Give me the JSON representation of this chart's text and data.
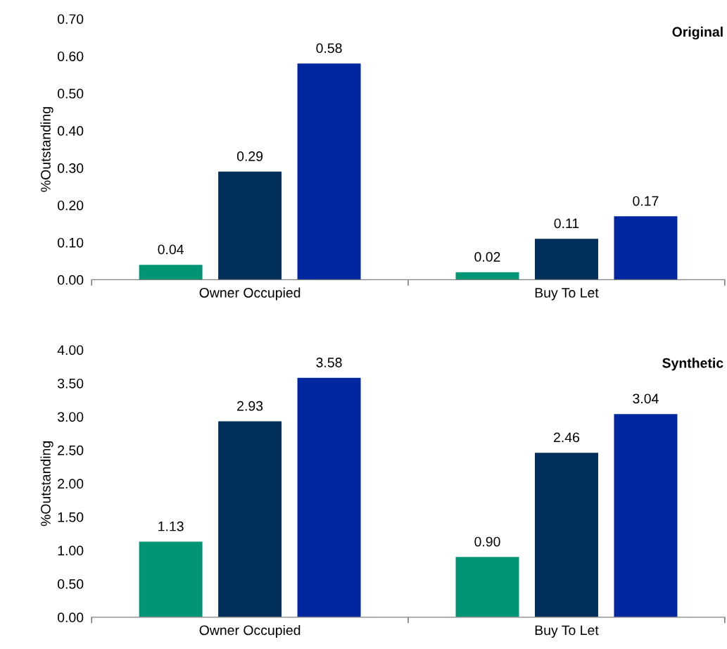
{
  "chart_data": [
    {
      "type": "bar",
      "title": "Original",
      "ylabel": "%Outstanding",
      "categories": [
        "Owner Occupied",
        "Buy To Let"
      ],
      "series": [
        {
          "color": "#009673",
          "values": [
            0.04,
            0.02
          ],
          "value_labels": [
            "0.04",
            "0.02"
          ]
        },
        {
          "color": "#002f5a",
          "values": [
            0.29,
            0.11
          ],
          "value_labels": [
            "0.29",
            "0.11"
          ]
        },
        {
          "color": "#0026a0",
          "values": [
            0.58,
            0.17
          ],
          "value_labels": [
            "0.58",
            "0.17"
          ]
        }
      ],
      "ylim": [
        0,
        0.7
      ],
      "yticks": [
        {
          "value": 0,
          "label": "0.00"
        },
        {
          "value": 0.1,
          "label": "0.10"
        },
        {
          "value": 0.2,
          "label": "0.20"
        },
        {
          "value": 0.3,
          "label": "0.30"
        },
        {
          "value": 0.4,
          "label": "0.40"
        },
        {
          "value": 0.5,
          "label": "0.50"
        },
        {
          "value": 0.6,
          "label": "0.60"
        },
        {
          "value": 0.7,
          "label": "0.70"
        }
      ],
      "grid": false,
      "legend": false
    },
    {
      "type": "bar",
      "title": "Synthetic",
      "ylabel": "%Outstanding",
      "categories": [
        "Owner Occupied",
        "Buy To Let"
      ],
      "series": [
        {
          "color": "#009673",
          "values": [
            1.13,
            0.9
          ],
          "value_labels": [
            "1.13",
            "0.90"
          ]
        },
        {
          "color": "#002f5a",
          "values": [
            2.93,
            2.46
          ],
          "value_labels": [
            "2.93",
            "2.46"
          ]
        },
        {
          "color": "#0026a0",
          "values": [
            3.58,
            3.04
          ],
          "value_labels": [
            "3.58",
            "3.04"
          ]
        }
      ],
      "ylim": [
        0,
        4
      ],
      "yticks": [
        {
          "value": 0,
          "label": "0.00"
        },
        {
          "value": 0.5,
          "label": "0.50"
        },
        {
          "value": 1,
          "label": "1.00"
        },
        {
          "value": 1.5,
          "label": "1.50"
        },
        {
          "value": 2,
          "label": "2.00"
        },
        {
          "value": 2.5,
          "label": "2.50"
        },
        {
          "value": 3,
          "label": "3.00"
        },
        {
          "value": 3.5,
          "label": "3.50"
        },
        {
          "value": 4,
          "label": "4.00"
        }
      ],
      "grid": false,
      "legend": false
    }
  ]
}
